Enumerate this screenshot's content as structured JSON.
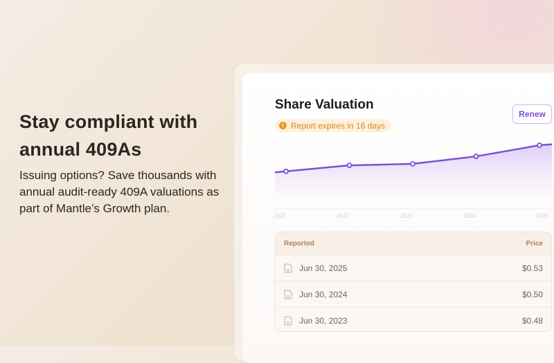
{
  "hero": {
    "title": "Stay compliant with annual 409As",
    "body": "Issuing options? Save thousands with annual audit-ready 409A valuations as part of Mantle’s Growth plan."
  },
  "card": {
    "title": "Share Valuation",
    "badge": "Report expires in 16 days",
    "badge_icon": "info-icon",
    "renew_label": "Renew",
    "colors": {
      "accent": "#7a4fd6",
      "warning": "#e39a24"
    }
  },
  "chart_data": {
    "type": "area",
    "categories": [
      "2021",
      "2022",
      "2023",
      "2024",
      "2025"
    ],
    "values": [
      0.46,
      0.476,
      0.48,
      0.5,
      0.53
    ],
    "xlabel": "",
    "ylabel": "",
    "grid": false
  },
  "table": {
    "headers": [
      "Reported",
      "Price"
    ],
    "rows": [
      {
        "date": "Jun 30, 2025",
        "price": "$0.53"
      },
      {
        "date": "Jun 30, 2024",
        "price": "$0.50"
      },
      {
        "date": "Jun 30, 2023",
        "price": "$0.48"
      }
    ]
  }
}
